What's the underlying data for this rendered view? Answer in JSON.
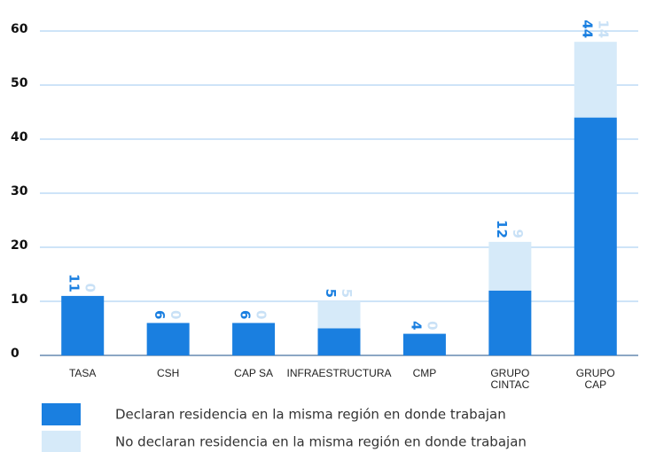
{
  "chart_data": {
    "type": "stacked_bar",
    "categories": [
      "TASA",
      "CSH",
      "CAP SA",
      "INFRAESTRUCTURA",
      "CMP",
      "GRUPO\nCINTAC",
      "GRUPO\nCAP"
    ],
    "series": [
      {
        "name": "Declaran residencia en la misma región en donde trabajan",
        "color": "#1a7fe0",
        "values": [
          11,
          6,
          6,
          5,
          4,
          12,
          44
        ]
      },
      {
        "name": "No declaran residencia en la misma región en donde trabajan",
        "color": "#d6eaf9",
        "values": [
          0,
          0,
          0,
          5,
          0,
          9,
          14
        ]
      }
    ],
    "ylim": [
      0,
      60
    ],
    "yticks": [
      0,
      10,
      20,
      30,
      40,
      50,
      60
    ],
    "grid": true
  }
}
